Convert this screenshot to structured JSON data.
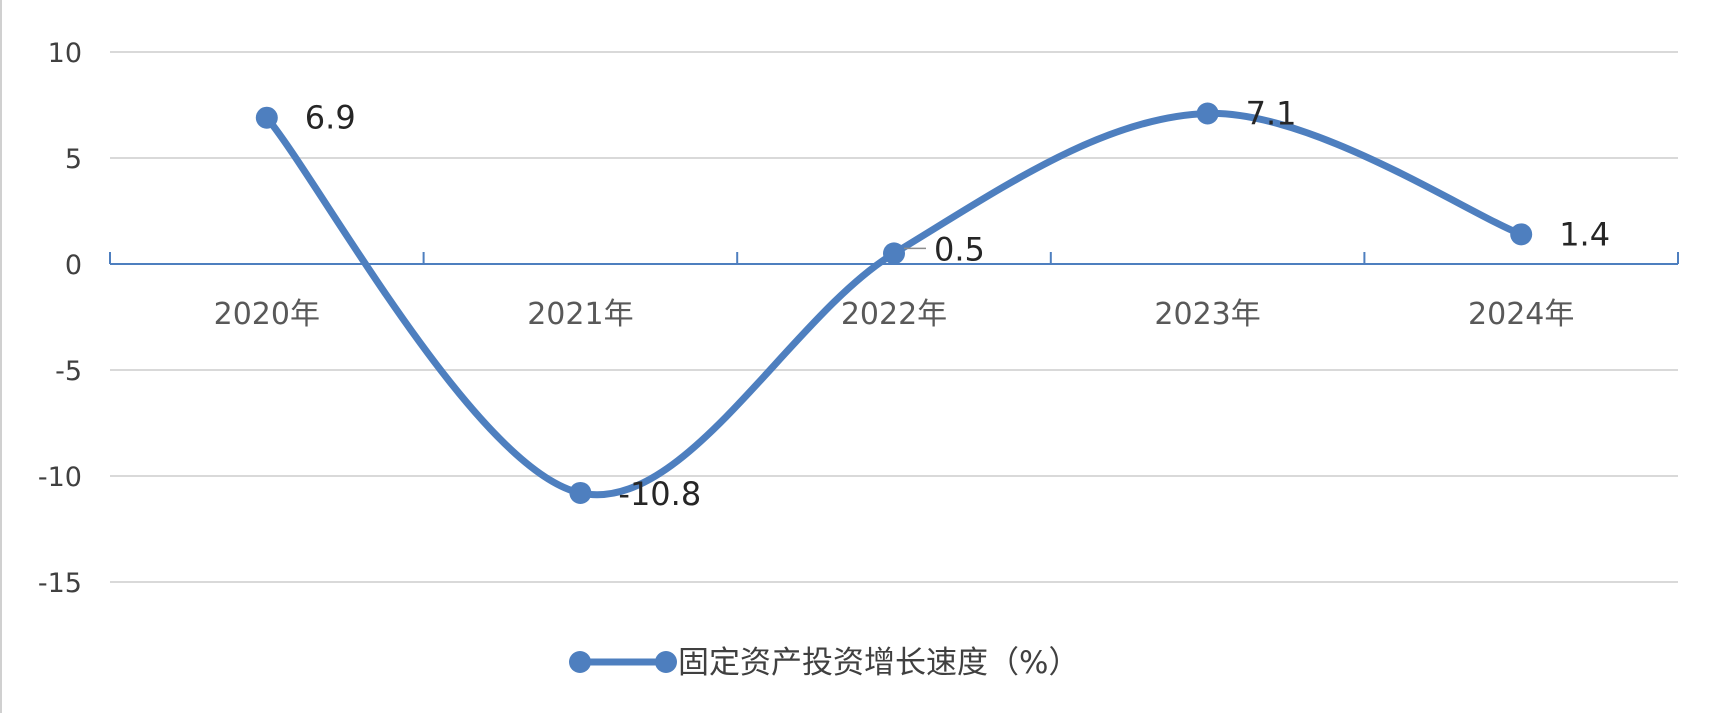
{
  "chart_data": {
    "type": "line",
    "smooth": true,
    "title": "",
    "xlabel": "",
    "ylabel": "",
    "categories": [
      "2020年",
      "2021年",
      "2022年",
      "2023年",
      "2024年"
    ],
    "ylim": [
      -15,
      10
    ],
    "yticks": [
      10,
      5,
      0,
      -5,
      -10,
      -15
    ],
    "ytick_labels": [
      "10",
      "5",
      "0",
      "-5",
      "-10",
      "-15"
    ],
    "grid": true,
    "legend_position": "bottom",
    "series": [
      {
        "name": "固定资产投资增长速度（%）",
        "values": [
          6.9,
          -10.8,
          0.5,
          7.1,
          1.4
        ],
        "data_labels": [
          "6.9",
          "-10.8",
          "0.5",
          "7.1",
          "1.4"
        ],
        "color": "#4e7fbf"
      }
    ],
    "highlight_label_color": "#ff0000",
    "highlighted_points": [
      1
    ]
  }
}
